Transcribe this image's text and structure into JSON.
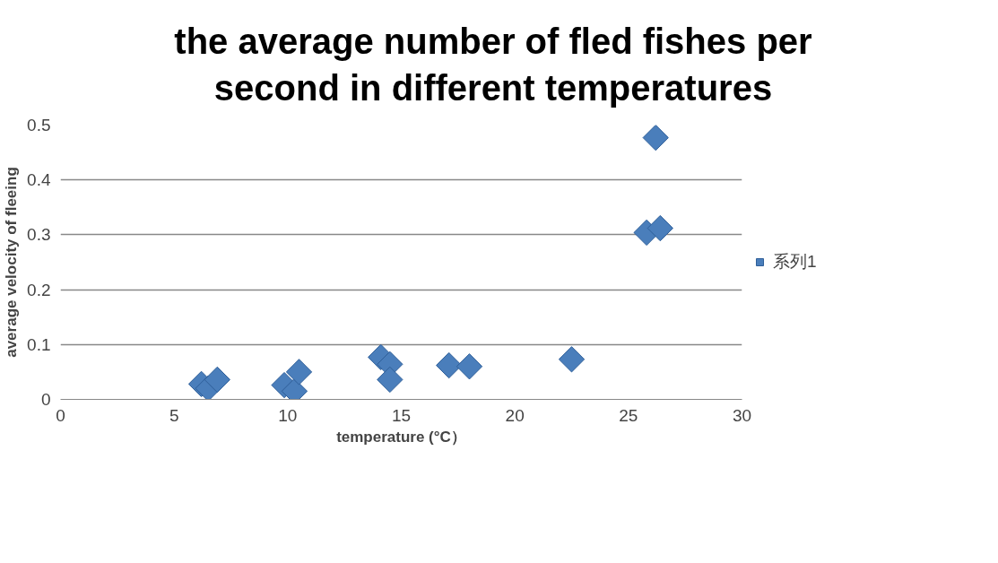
{
  "chart_data": {
    "type": "scatter",
    "title": "the average number of fled fishes per second in different temperatures",
    "xlabel": "temperature (°C）",
    "ylabel": "average velocity of fleeing",
    "xlim": [
      0,
      30
    ],
    "xticks": [
      0,
      5,
      10,
      15,
      20,
      25,
      30
    ],
    "ylim": [
      0,
      0.5
    ],
    "yticks": [
      0,
      0.1,
      0.2,
      0.3,
      0.4,
      0.5
    ],
    "grid": "y",
    "legend": "right",
    "marker": "diamond",
    "series": [
      {
        "name": "系列1",
        "color": "#4a7ebb",
        "x": [
          6.2,
          6.5,
          6.9,
          9.85,
          10.3,
          10.5,
          14.1,
          14.5,
          14.5,
          17.1,
          18.0,
          22.5,
          26.2,
          25.8,
          26.4
        ],
        "values": [
          0.028,
          0.02,
          0.036,
          0.026,
          0.015,
          0.05,
          0.077,
          0.064,
          0.036,
          0.062,
          0.06,
          0.073,
          0.477,
          0.304,
          0.312
        ]
      }
    ]
  }
}
